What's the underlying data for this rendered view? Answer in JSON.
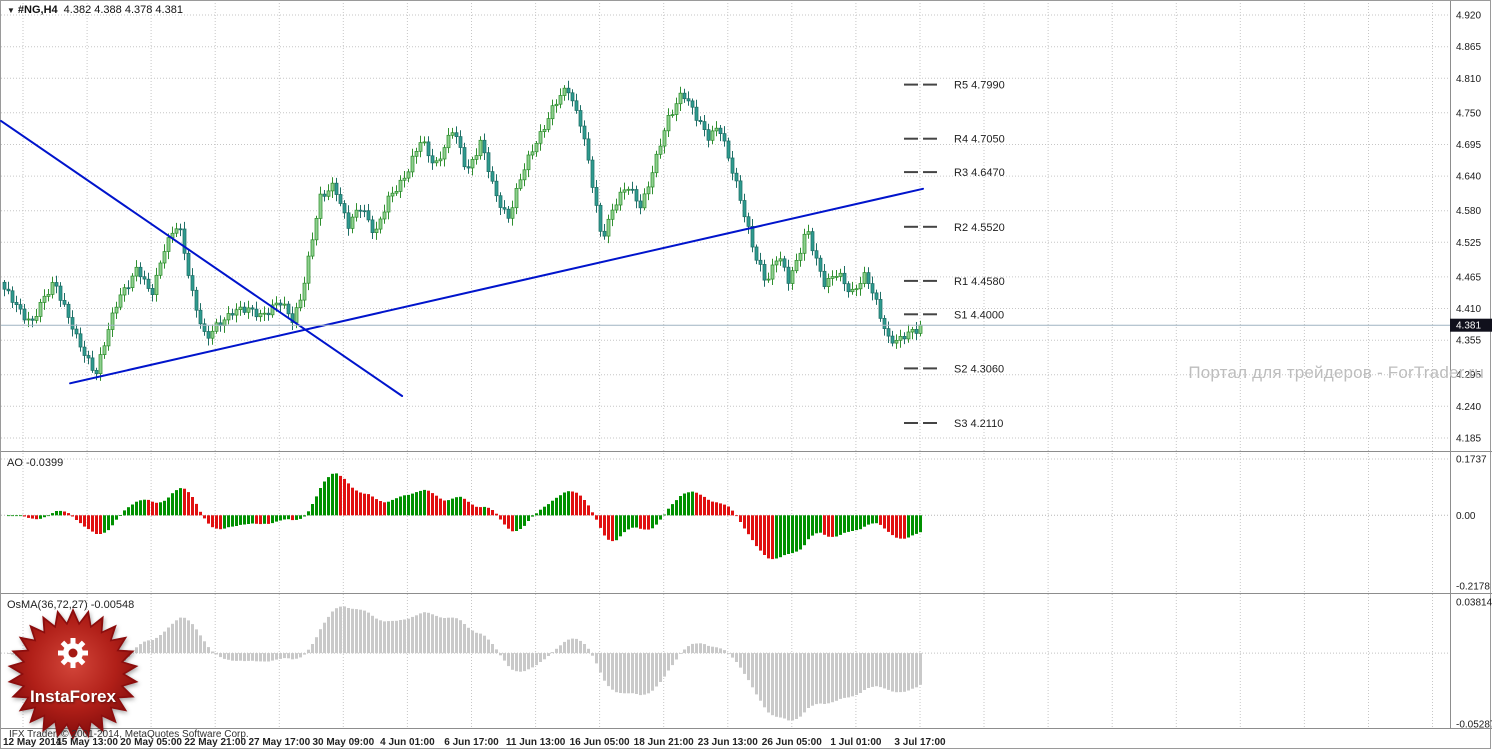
{
  "header": {
    "symbol": "#NG,H4",
    "ohlc": "4.382 4.388 4.378 4.381",
    "dropdown_icon": "▼"
  },
  "watermark": "Портал для трейдеров - ForTrader.ru",
  "copyright": "IFX Trader, © 2001-2014, MetaQuotes Software Corp.",
  "badge": {
    "text": "InstaForex"
  },
  "chart_data": {
    "type": "candlestick",
    "symbol": "#NG",
    "timeframe": "H4",
    "current_price": 4.381,
    "current_price_label": "4.381",
    "bar_count": 230,
    "ylim": [
      4.185,
      4.92
    ],
    "price_axis": [
      "4.920",
      "4.865",
      "4.810",
      "4.750",
      "4.695",
      "4.640",
      "4.580",
      "4.525",
      "4.465",
      "4.410",
      "4.355",
      "4.295",
      "4.240",
      "4.185"
    ],
    "time_labels": [
      "12 May 2014",
      "15 May 13:00",
      "20 May 05:00",
      "22 May 21:00",
      "27 May 17:00",
      "30 May 09:00",
      "4 Jun 01:00",
      "6 Jun 17:00",
      "11 Jun 13:00",
      "16 Jun 05:00",
      "18 Jun 21:00",
      "23 Jun 13:00",
      "26 Jun 05:00",
      "1 Jul 01:00",
      "3 Jul 17:00"
    ],
    "pivots": [
      {
        "label": "R5",
        "value": "4.7990"
      },
      {
        "label": "R4",
        "value": "4.7050"
      },
      {
        "label": "R3",
        "value": "4.6470"
      },
      {
        "label": "R2",
        "value": "4.5520"
      },
      {
        "label": "R1",
        "value": "4.4580"
      },
      {
        "label": "S1",
        "value": "4.4000"
      },
      {
        "label": "S2",
        "value": "4.3060"
      },
      {
        "label": "S3",
        "value": "4.2110"
      }
    ],
    "trendlines": [
      {
        "t1": 0.0,
        "p1": 4.736,
        "t2": 0.435,
        "p2": 4.258
      },
      {
        "t1": 0.075,
        "p1": 4.28,
        "t2": 1.0,
        "p2": 4.618
      }
    ],
    "price_anchors": [
      [
        0.0,
        4.44
      ],
      [
        0.03,
        4.385
      ],
      [
        0.055,
        4.46
      ],
      [
        0.08,
        4.35
      ],
      [
        0.1,
        4.3
      ],
      [
        0.125,
        4.43
      ],
      [
        0.145,
        4.48
      ],
      [
        0.16,
        4.43
      ],
      [
        0.175,
        4.52
      ],
      [
        0.19,
        4.555
      ],
      [
        0.205,
        4.44
      ],
      [
        0.22,
        4.355
      ],
      [
        0.25,
        4.41
      ],
      [
        0.28,
        4.4
      ],
      [
        0.3,
        4.42
      ],
      [
        0.315,
        4.39
      ],
      [
        0.325,
        4.44
      ],
      [
        0.345,
        4.6
      ],
      [
        0.36,
        4.63
      ],
      [
        0.375,
        4.55
      ],
      [
        0.39,
        4.59
      ],
      [
        0.405,
        4.54
      ],
      [
        0.42,
        4.6
      ],
      [
        0.44,
        4.65
      ],
      [
        0.455,
        4.7
      ],
      [
        0.47,
        4.66
      ],
      [
        0.49,
        4.72
      ],
      [
        0.505,
        4.65
      ],
      [
        0.52,
        4.7
      ],
      [
        0.535,
        4.61
      ],
      [
        0.55,
        4.57
      ],
      [
        0.565,
        4.64
      ],
      [
        0.58,
        4.7
      ],
      [
        0.6,
        4.76
      ],
      [
        0.615,
        4.795
      ],
      [
        0.63,
        4.73
      ],
      [
        0.64,
        4.64
      ],
      [
        0.652,
        4.53
      ],
      [
        0.665,
        4.59
      ],
      [
        0.68,
        4.62
      ],
      [
        0.695,
        4.59
      ],
      [
        0.71,
        4.66
      ],
      [
        0.725,
        4.74
      ],
      [
        0.74,
        4.79
      ],
      [
        0.755,
        4.74
      ],
      [
        0.768,
        4.71
      ],
      [
        0.78,
        4.73
      ],
      [
        0.79,
        4.67
      ],
      [
        0.8,
        4.62
      ],
      [
        0.81,
        4.565
      ],
      [
        0.82,
        4.5
      ],
      [
        0.832,
        4.45
      ],
      [
        0.845,
        4.51
      ],
      [
        0.856,
        4.46
      ],
      [
        0.866,
        4.49
      ],
      [
        0.876,
        4.55
      ],
      [
        0.886,
        4.5
      ],
      [
        0.896,
        4.45
      ],
      [
        0.91,
        4.47
      ],
      [
        0.925,
        4.44
      ],
      [
        0.94,
        4.465
      ],
      [
        0.952,
        4.42
      ],
      [
        0.965,
        4.36
      ],
      [
        0.976,
        4.35
      ],
      [
        0.99,
        4.37
      ],
      [
        1.0,
        4.381
      ]
    ],
    "ao": {
      "label": "AO -0.0399",
      "value": -0.0399,
      "ticks": [
        "0.1737",
        "0.00",
        "-0.2178"
      ],
      "max": 0.1737,
      "min": -0.2178
    },
    "osma": {
      "label": "OsMA(36,72,27) -0.00548",
      "value": -0.00548,
      "ticks": [
        "0.03814",
        "-0.05287"
      ],
      "max": 0.03814,
      "min": -0.05287
    },
    "colors": {
      "up_fill": "#8fd08f",
      "up_stroke": "#2f8f2f",
      "down_fill": "#2e9b8f",
      "down_stroke": "#1f6f66",
      "ao_up": "#009000",
      "ao_down": "#e01010",
      "osma": "#c9c9c9",
      "trend": "#0014cc",
      "grid": "#c6c6c6",
      "axis_text": "#1a1a1a",
      "current_line": "#9fb4c2",
      "current_tag_bg": "#10101c",
      "badge_red": "#a31212"
    }
  }
}
